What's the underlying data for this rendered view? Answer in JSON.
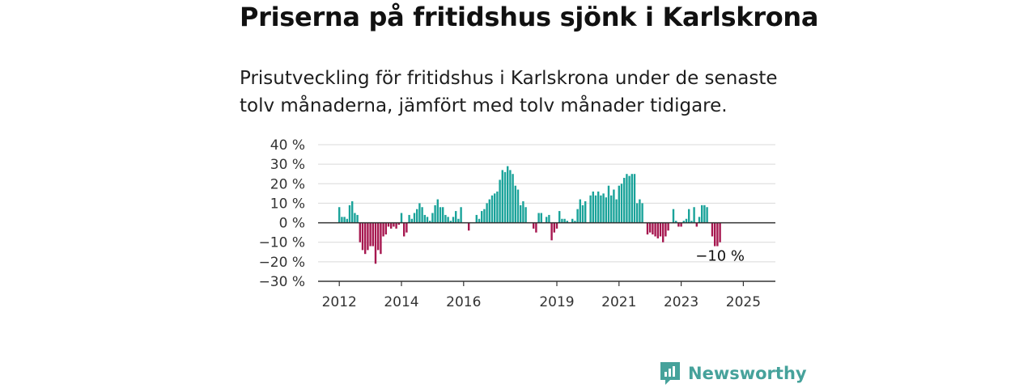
{
  "header": {
    "title": "Priserna på fritidshus sjönk i Karlskrona",
    "subtitle": "Prisutveckling för fritidshus i Karlskrona under de senaste tolv månaderna, jämfört med tolv månader tidigare."
  },
  "brand": {
    "name": "Newsworthy",
    "icon": "newsworthy-logo-icon",
    "color": "#46a29b"
  },
  "colors": {
    "positive": "#1aa39a",
    "negative": "#a6174f",
    "grid": "#d9d9d9",
    "zero_line": "#333333"
  },
  "chart_data": {
    "type": "bar",
    "title": "",
    "xlabel": "",
    "ylabel": "",
    "ylim": [
      -30,
      40
    ],
    "y_ticks": [
      {
        "value": 40,
        "label": "40 %"
      },
      {
        "value": 30,
        "label": "30 %"
      },
      {
        "value": 20,
        "label": "20 %"
      },
      {
        "value": 10,
        "label": "10 %"
      },
      {
        "value": 0,
        "label": "0 %"
      },
      {
        "value": -10,
        "label": "−10 %"
      },
      {
        "value": -20,
        "label": "−20 %"
      },
      {
        "value": -30,
        "label": "−30 %"
      }
    ],
    "x_ticks": [
      "2012",
      "2014",
      "2016",
      "2019",
      "2021",
      "2023",
      "2025"
    ],
    "grid": true,
    "legend": "none",
    "annotation": "−10 %",
    "start": "2012-01",
    "frequency": "monthly",
    "values": [
      8,
      3,
      3,
      2,
      9,
      11,
      5,
      4,
      -10,
      -14,
      -16,
      -14,
      -12,
      -12,
      -21,
      -14,
      -16,
      -7,
      -6,
      -2,
      -3,
      -2,
      -3,
      -1,
      5,
      -7,
      -5,
      4,
      2,
      5,
      7,
      10,
      8,
      4,
      3,
      1,
      5,
      9,
      12,
      8,
      8,
      4,
      3,
      1,
      3,
      6,
      2,
      8,
      0,
      0,
      -4,
      0,
      0,
      4,
      2,
      6,
      7,
      10,
      12,
      14,
      15,
      16,
      22,
      27,
      26,
      29,
      27,
      25,
      19,
      17,
      9,
      11,
      8,
      0,
      0,
      -3,
      -5,
      5,
      5,
      0,
      3,
      4,
      -9,
      -5,
      -3,
      6,
      2,
      2,
      1,
      0,
      2,
      1,
      7,
      12,
      9,
      11,
      0,
      14,
      16,
      14,
      16,
      14,
      15,
      13,
      19,
      14,
      17,
      12,
      19,
      20,
      23,
      25,
      24,
      25,
      25,
      10,
      12,
      10,
      0,
      -6,
      -5,
      -6,
      -7,
      -8,
      -7,
      -10,
      -7,
      -4,
      0,
      7,
      1,
      -2,
      -2,
      1,
      2,
      7,
      1,
      8,
      -2,
      3,
      9,
      9,
      8,
      0,
      -7,
      -12,
      -12,
      -10
    ]
  }
}
